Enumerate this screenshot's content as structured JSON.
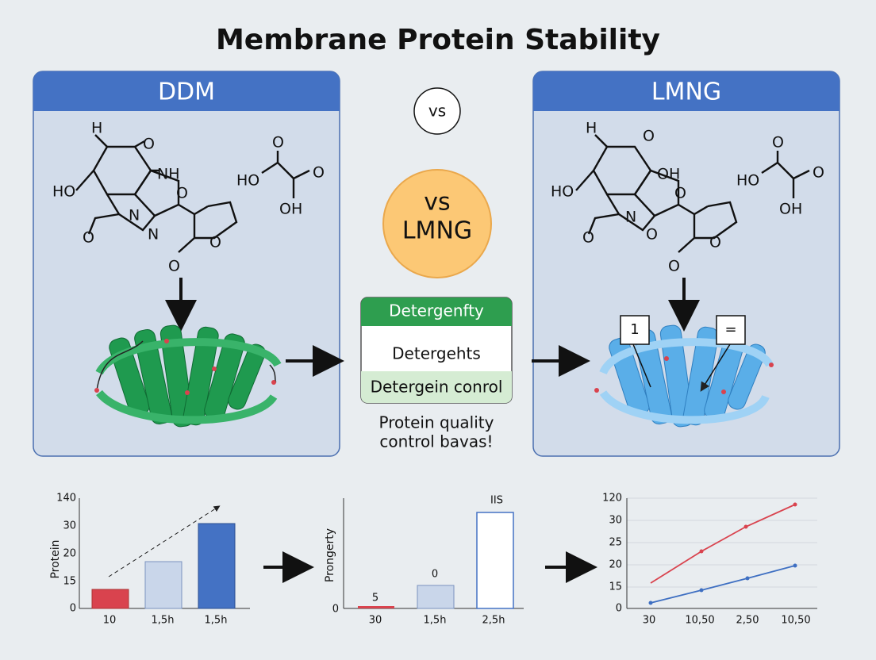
{
  "title": "Membrane Protein Stability",
  "left_panel": {
    "header": "DDM",
    "molecule_labels": [
      "H",
      "O",
      "NH",
      "HO",
      "O",
      "N",
      "N",
      "O",
      "O",
      "O"
    ],
    "acid_labels": [
      "O",
      "HO",
      "O",
      "OH"
    ]
  },
  "right_panel": {
    "header": "LMNG",
    "molecule_labels": [
      "H",
      "O",
      "OH",
      "HO",
      "O",
      "N",
      "O",
      "O",
      "O",
      "O"
    ],
    "acid_labels": [
      "O",
      "HO",
      "O",
      "OH"
    ],
    "callouts": [
      "1",
      "="
    ]
  },
  "vs_badge": "vs",
  "center_badge": {
    "line1": "vs",
    "line2": "LMNG"
  },
  "center_box": {
    "rows": [
      "Detergenfty",
      "Detergehts",
      "Detergein conrol"
    ]
  },
  "caption": [
    "Protein quality",
    "control bavas!"
  ],
  "bottom_charts": [
    {
      "y_label": "Protein",
      "y_ticks": [
        "140",
        "30",
        "20",
        "15",
        "0"
      ],
      "x_labels": [
        "10",
        "1,5h",
        "1,5h"
      ]
    },
    {
      "y_label": "Prongerty",
      "y_ticks": [
        "0"
      ],
      "bar_labels": [
        "5",
        "0",
        "IIS"
      ],
      "x_labels": [
        "30",
        "1,5h",
        "2,5h"
      ]
    },
    {
      "y_ticks": [
        "120",
        "30",
        "25",
        "20",
        "15",
        "0"
      ],
      "x_labels": [
        "30",
        "10,50",
        "2,50",
        "10,50"
      ]
    }
  ]
}
